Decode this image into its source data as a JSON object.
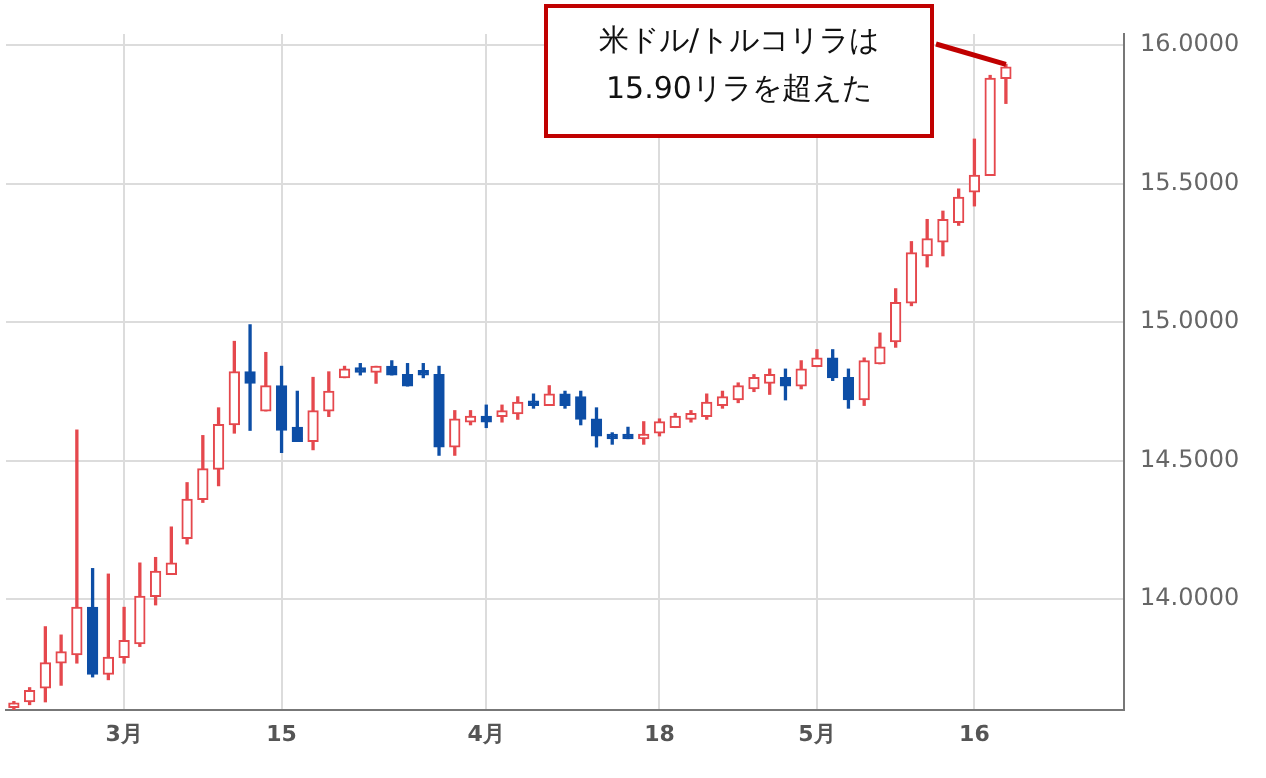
{
  "chart_data": {
    "type": "candlestick",
    "annotations": [
      "米ドル/トルコリラは\n15.90リラを超えた"
    ],
    "categories": [
      null,
      null,
      null,
      null,
      null,
      null,
      null,
      "3月",
      null,
      null,
      null,
      null,
      null,
      null,
      null,
      null,
      null,
      "15",
      null,
      null,
      null,
      null,
      null,
      null,
      null,
      null,
      null,
      null,
      null,
      null,
      "4月",
      null,
      null,
      null,
      null,
      null,
      null,
      null,
      null,
      null,
      null,
      "18",
      null,
      null,
      null,
      null,
      null,
      null,
      null,
      null,
      null,
      "5月",
      null,
      null,
      null,
      null,
      null,
      null,
      null,
      null,
      null,
      "16",
      null,
      null,
      null,
      null,
      null,
      null,
      null,
      null,
      null
    ],
    "ohlc": [
      [
        13.61,
        13.63,
        13.6,
        13.62
      ],
      [
        13.63,
        13.68,
        13.62,
        13.67
      ],
      [
        13.68,
        13.9,
        13.63,
        13.77
      ],
      [
        13.77,
        13.87,
        13.69,
        13.81
      ],
      [
        13.8,
        14.61,
        13.77,
        13.97
      ],
      [
        13.97,
        14.11,
        13.72,
        13.73
      ],
      [
        13.73,
        14.09,
        13.71,
        13.79
      ],
      [
        13.79,
        13.97,
        13.77,
        13.85
      ],
      [
        13.84,
        14.13,
        13.83,
        14.01
      ],
      [
        14.01,
        14.15,
        13.98,
        14.1
      ],
      [
        14.09,
        14.26,
        14.09,
        14.13
      ],
      [
        14.22,
        14.42,
        14.2,
        14.36
      ],
      [
        14.36,
        14.59,
        14.35,
        14.47
      ],
      [
        14.47,
        14.69,
        14.41,
        14.63
      ],
      [
        14.63,
        14.93,
        14.6,
        14.82
      ],
      [
        14.82,
        14.99,
        14.61,
        14.78
      ],
      [
        14.68,
        14.89,
        14.68,
        14.77
      ],
      [
        14.77,
        14.84,
        14.53,
        14.61
      ],
      [
        14.62,
        14.75,
        14.57,
        14.57
      ],
      [
        14.57,
        14.8,
        14.54,
        14.68
      ],
      [
        14.68,
        14.82,
        14.66,
        14.75
      ],
      [
        14.8,
        14.84,
        14.8,
        14.83
      ],
      [
        14.83,
        14.85,
        14.81,
        14.82
      ],
      [
        14.82,
        14.84,
        14.78,
        14.84
      ],
      [
        14.84,
        14.86,
        14.81,
        14.81
      ],
      [
        14.81,
        14.85,
        14.77,
        14.77
      ],
      [
        14.82,
        14.85,
        14.8,
        14.81
      ],
      [
        14.81,
        14.84,
        14.52,
        14.55
      ],
      [
        14.55,
        14.68,
        14.52,
        14.65
      ],
      [
        14.64,
        14.68,
        14.63,
        14.66
      ],
      [
        14.66,
        14.7,
        14.62,
        14.64
      ],
      [
        14.66,
        14.7,
        14.64,
        14.68
      ],
      [
        14.67,
        14.73,
        14.65,
        14.71
      ],
      [
        14.71,
        14.74,
        14.69,
        14.7
      ],
      [
        14.7,
        14.77,
        14.7,
        14.74
      ],
      [
        14.74,
        14.75,
        14.69,
        14.7
      ],
      [
        14.73,
        14.75,
        14.63,
        14.65
      ],
      [
        14.65,
        14.69,
        14.55,
        14.59
      ],
      [
        14.59,
        14.6,
        14.56,
        14.58
      ],
      [
        14.59,
        14.62,
        14.58,
        14.58
      ],
      [
        14.58,
        14.64,
        14.56,
        14.59
      ],
      [
        14.6,
        14.65,
        14.59,
        14.64
      ],
      [
        14.62,
        14.67,
        14.62,
        14.66
      ],
      [
        14.65,
        14.68,
        14.64,
        14.67
      ],
      [
        14.66,
        14.74,
        14.65,
        14.71
      ],
      [
        14.7,
        14.75,
        14.69,
        14.73
      ],
      [
        14.72,
        14.78,
        14.71,
        14.77
      ],
      [
        14.76,
        14.81,
        14.75,
        14.8
      ],
      [
        14.78,
        14.83,
        14.74,
        14.81
      ],
      [
        14.8,
        14.83,
        14.72,
        14.77
      ],
      [
        14.77,
        14.86,
        14.76,
        14.83
      ],
      [
        14.84,
        14.9,
        14.84,
        14.87
      ],
      [
        14.87,
        14.9,
        14.79,
        14.8
      ],
      [
        14.8,
        14.83,
        14.69,
        14.72
      ],
      [
        14.72,
        14.87,
        14.7,
        14.86
      ],
      [
        14.85,
        14.96,
        14.85,
        14.91
      ],
      [
        14.93,
        15.12,
        14.91,
        15.07
      ],
      [
        15.07,
        15.29,
        15.06,
        15.25
      ],
      [
        15.24,
        15.37,
        15.2,
        15.3
      ],
      [
        15.29,
        15.4,
        15.24,
        15.37
      ],
      [
        15.36,
        15.48,
        15.35,
        15.45
      ],
      [
        15.47,
        15.66,
        15.42,
        15.53
      ],
      [
        15.53,
        15.89,
        15.53,
        15.88
      ],
      [
        15.88,
        15.93,
        15.79,
        15.92
      ],
      null,
      null,
      null,
      null,
      null,
      null,
      null
    ],
    "ylim": [
      13.6,
      16.04
    ],
    "yticks": [
      {
        "value": 14,
        "label": "14.0000"
      },
      {
        "value": 14.5,
        "label": "14.5000"
      },
      {
        "value": 15,
        "label": "15.0000"
      },
      {
        "value": 15.5,
        "label": "15.5000"
      },
      {
        "value": 16,
        "label": "16.0000"
      }
    ],
    "grid": true
  }
}
